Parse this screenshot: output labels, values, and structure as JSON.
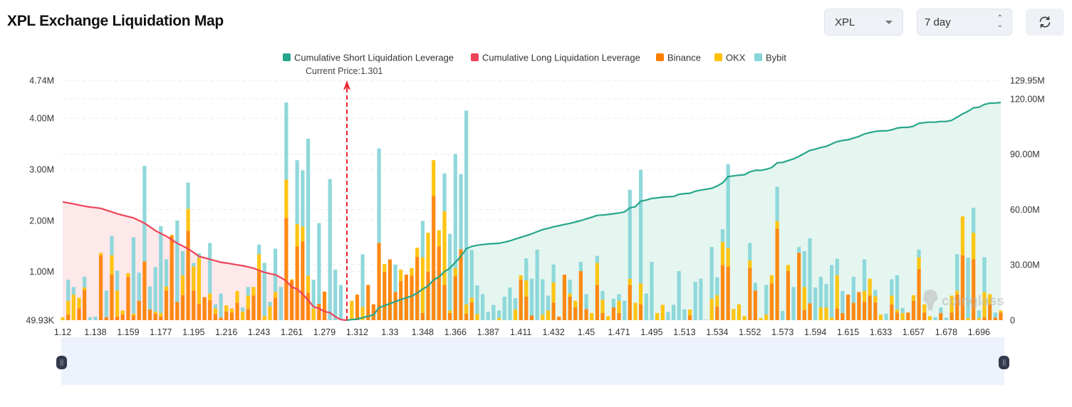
{
  "header": {
    "title": "XPL Exchange Liquidation Map",
    "symbol_select": "XPL",
    "range_select": "7 day",
    "refresh_icon": "refresh-icon"
  },
  "watermark": "coinglass",
  "chart_data": {
    "type": "bar",
    "stacked": true,
    "legend_placement": "top-center",
    "legend": [
      "Cumulative Short Liquidation Leverage",
      "Cumulative Long Liquidation Leverage",
      "Binance",
      "OKX",
      "Bybit"
    ],
    "current_price_label": "Current Price:1.301",
    "current_price": 1.301,
    "grid": true,
    "x_tick_labels": [
      "1.12",
      "1.138",
      "1.159",
      "1.177",
      "1.195",
      "1.216",
      "1.243",
      "1.261",
      "1.279",
      "1.312",
      "1.33",
      "1.348",
      "1.366",
      "1.387",
      "1.411",
      "1.432",
      "1.45",
      "1.471",
      "1.495",
      "1.513",
      "1.534",
      "1.552",
      "1.573",
      "1.594",
      "1.615",
      "1.633",
      "1.657",
      "1.678",
      "1.696"
    ],
    "y_left": {
      "tick_labels": [
        "49.93K",
        "1.00M",
        "2.00M",
        "3.00M",
        "4.00M",
        "4.74M"
      ],
      "ticks": [
        0.04993,
        1,
        2,
        3,
        4,
        4.74
      ],
      "range": [
        0.04993,
        4.74
      ],
      "unit": "M"
    },
    "y_right": {
      "tick_labels": [
        "0",
        "30.00M",
        "60.00M",
        "90.00M",
        "120.00M",
        "129.95M"
      ],
      "ticks": [
        0,
        30,
        60,
        90,
        120,
        129.95
      ],
      "range": [
        0,
        129.95
      ],
      "unit": "M"
    },
    "colors": {
      "Binance": "#ff7f00",
      "OKX": "#ffc000",
      "Bybit": "#86d5d8",
      "short_line": "#26a68a",
      "long_line": "#ef4358",
      "short_fill": "#e5f5f0",
      "long_fill": "#fde8ea",
      "current_price": "#e8212f"
    },
    "series": [
      {
        "name": "Binance",
        "axis": "left",
        "values": [
          0,
          0.11,
          0,
          0.23,
          0.59,
          0,
          0,
          1.27,
          0.06,
          0.89,
          0.07,
          0.11,
          0.85,
          0.09,
          0.38,
          1.15,
          0.21,
          0.13,
          0.07,
          0.58,
          1.65,
          0.36,
          0.49,
          1.75,
          0.58,
          0.32,
          0.45,
          0.39,
          0.12,
          0.05,
          0.17,
          0.15,
          0.34,
          0,
          0.22,
          0.48,
          0.96,
          0,
          0,
          0.44,
          0,
          2.0,
          0.78,
          1.44,
          1.54,
          0.54,
          0,
          0.32,
          0.56,
          0,
          0,
          0,
          0,
          0,
          0.5,
          0,
          0.69,
          0.31,
          1.51,
          0.94,
          1.19,
          0.55,
          0.77,
          0.89,
          0.87,
          1.24,
          0.14,
          0.95,
          2.43,
          1.44,
          0.69,
          0.14,
          0.86,
          1.39,
          0.13,
          0.35,
          0,
          0,
          0,
          0,
          0,
          0,
          0,
          0,
          0.79,
          0.46,
          0.09,
          0,
          0,
          0,
          0.35,
          0.07,
          0.89,
          0.46,
          0.25,
          0.96,
          0.22,
          0,
          0.69,
          0.14,
          0,
          0.25,
          0.14,
          0,
          0.69,
          0,
          0.31,
          0,
          0,
          0,
          0,
          0,
          0,
          0,
          0,
          0.09,
          0,
          0,
          0,
          0,
          0.27,
          1.08,
          1.05,
          0,
          0,
          0,
          1.02,
          0.58,
          0,
          0,
          0.72,
          1.79,
          0,
          0.96,
          0,
          1.32,
          0.2,
          0.33,
          0,
          0,
          0,
          0,
          0.23,
          0.14,
          0.5,
          0.34,
          0.55,
          0.36,
          0.48,
          0.35,
          0,
          0,
          0.31,
          0.15,
          0,
          0.15,
          0.38,
          1.0,
          0.15,
          0,
          0,
          0.14,
          0,
          0.15,
          0.5,
          1.27,
          0,
          1.19,
          0,
          0.06,
          0.31,
          0.05,
          0.15
        ]
      },
      {
        "name": "OKX",
        "axis": "left",
        "values": [
          0.06,
          0.27,
          0.5,
          0.21,
          0.05,
          0,
          0,
          0.05,
          0,
          0.38,
          0.51,
          0.08,
          0.07,
          0.04,
          0,
          0,
          0,
          0.04,
          0.07,
          0.08,
          0.02,
          0,
          0.39,
          0.43,
          0.47,
          0.9,
          0,
          0.13,
          0.11,
          0,
          0.12,
          0.08,
          0.23,
          0.17,
          0.26,
          0.17,
          0.33,
          0.08,
          0.27,
          0.11,
          0,
          0.75,
          0.02,
          0.44,
          0.29,
          0.33,
          0.23,
          0,
          0,
          0,
          0,
          0,
          0,
          0.38,
          0,
          0.26,
          0,
          0,
          0,
          0.16,
          0,
          0,
          0.22,
          0,
          0.15,
          0.18,
          1.09,
          0.76,
          0.7,
          0.32,
          1.44,
          0.05,
          0.16,
          0,
          0.18,
          0.09,
          0.12,
          0,
          0,
          0,
          0.04,
          0,
          0,
          0.21,
          0.09,
          0.32,
          0,
          0,
          0.11,
          0.19,
          0.39,
          0,
          0,
          0.06,
          0.13,
          0,
          0,
          0.14,
          0.43,
          0.26,
          0.08,
          0,
          0.24,
          0,
          0.12,
          0.34,
          0.41,
          0,
          0,
          0.14,
          0.3,
          0,
          0,
          0,
          0,
          0.12,
          0,
          0,
          0,
          0.42,
          0.22,
          0.45,
          0.36,
          0.22,
          0.31,
          0.08,
          0.15,
          0,
          0.04,
          0.11,
          0.16,
          0.15,
          0,
          0.12,
          0,
          0,
          0.45,
          0,
          0,
          0.25,
          0.25,
          0.05,
          0.65,
          0,
          0,
          0,
          0,
          0.21,
          0.33,
          0.12,
          0.11,
          0,
          0.17,
          0.06,
          0.14,
          0,
          0.11,
          0.23,
          0.16,
          0.08,
          0,
          0,
          0,
          0.33,
          0.08,
          0.76,
          0.04,
          0.52,
          0.04,
          0.49,
          0.2,
          0,
          0.04
        ]
      },
      {
        "name": "Bybit",
        "axis": "left",
        "values": [
          0,
          0.41,
          0.15,
          0,
          0.21,
          0.06,
          0.07,
          0,
          0.52,
          0.38,
          0.39,
          0,
          0,
          1.49,
          0.55,
          1.87,
          0.45,
          0.87,
          1.7,
          0.53,
          0,
          1.59,
          0.47,
          0.51,
          0.07,
          0.09,
          0,
          0.99,
          0.08,
          0.47,
          0,
          0,
          0,
          0.08,
          0.17,
          0,
          0.19,
          1.04,
          0.09,
          0.85,
          0.65,
          1.51,
          0,
          1.25,
          1.1,
          2.68,
          0.56,
          1.58,
          0,
          2.76,
          0.99,
          0.69,
          0,
          0,
          0,
          1.03,
          0,
          0,
          1.85,
          0,
          0,
          0.54,
          0,
          0,
          0,
          0,
          0.71,
          0,
          0,
          0,
          0.74,
          1.5,
          2.23,
          1.47,
          3.79,
          0.93,
          0.56,
          0.51,
          0.16,
          0.3,
          0.15,
          0.46,
          0.64,
          0.22,
          0,
          0.43,
          0.72,
          1.38,
          0.69,
          0.29,
          0.35,
          0,
          0,
          0.27,
          0,
          0.18,
          0.29,
          0,
          0.14,
          0.17,
          0,
          0.17,
          0.13,
          0.38,
          1.74,
          0,
          2.22,
          0.52,
          1.14,
          0,
          0,
          0.16,
          0.3,
          0.96,
          0.21,
          0,
          0.75,
          0.81,
          0.01,
          1.01,
          0.35,
          0.25,
          1.64,
          0,
          0,
          0,
          0.34,
          0.15,
          0,
          0.58,
          0,
          0.67,
          0.18,
          0,
          0.65,
          0.11,
          0.7,
          1.27,
          0.64,
          0.6,
          0.46,
          1.03,
          0.32,
          0.43,
          0,
          0.51,
          0,
          0.62,
          0,
          0.12,
          0,
          0.13,
          0.32,
          0.67,
          0.1,
          0,
          0,
          0.15,
          0,
          0,
          0.06,
          0.11,
          0.05,
          0,
          0.71,
          0,
          1.18,
          0.49,
          0.15,
          0.68,
          0,
          0.1,
          0
        ]
      },
      {
        "name": "Cumulative Long Liquidation Leverage",
        "axis": "right",
        "type": "area",
        "align": "start",
        "values": [
          64.1,
          63.6,
          63.0,
          62.4,
          61.8,
          61.3,
          61.0,
          60.6,
          59.6,
          58.7,
          57.7,
          56.9,
          56.2,
          55.4,
          54.0,
          52.6,
          50.6,
          48.5,
          47.0,
          45.5,
          43.6,
          41.7,
          40.2,
          38.7,
          36.7,
          34.6,
          33.8,
          33.0,
          32.2,
          31.4,
          31.0,
          30.5,
          30.0,
          29.5,
          28.9,
          28.2,
          27.0,
          25.9,
          25.2,
          24.6,
          23.1,
          21.2,
          18.0,
          16.9,
          14.1,
          10.9,
          7.3,
          6.4,
          4.7,
          4.1,
          1.9,
          0.3,
          0
        ]
      },
      {
        "name": "Cumulative Short Liquidation Leverage",
        "axis": "right",
        "type": "area",
        "align": "end",
        "values": [
          0,
          0.3,
          0.6,
          1.4,
          2.2,
          2.9,
          6.8,
          7.9,
          9.0,
          10.1,
          11.2,
          12.1,
          13.1,
          14.7,
          16.9,
          18.6,
          21.8,
          23.5,
          26.3,
          28.2,
          31.4,
          34.6,
          38.7,
          40.0,
          40.6,
          41.0,
          41.3,
          41.5,
          41.7,
          42.3,
          43.0,
          44.0,
          44.9,
          45.8,
          46.8,
          48.0,
          49.1,
          49.8,
          50.6,
          51.2,
          51.9,
          52.5,
          53.2,
          54.0,
          54.9,
          55.8,
          56.8,
          57.0,
          57.3,
          57.7,
          58.1,
          58.7,
          60.9,
          61.5,
          64.5,
          65.1,
          66.0,
          66.3,
          66.7,
          66.9,
          67.0,
          68.2,
          68.6,
          68.8,
          69.9,
          70.5,
          71.0,
          71.5,
          72.7,
          74.4,
          77.8,
          78.2,
          78.6,
          78.8,
          80.4,
          81.2,
          81.2,
          81.8,
          82.7,
          85.3,
          85.5,
          86.5,
          87.4,
          88.8,
          90.4,
          92.0,
          92.7,
          93.6,
          94.2,
          95.5,
          96.8,
          97.4,
          97.8,
          98.7,
          99.6,
          100.9,
          101.7,
          102.3,
          102.6,
          102.6,
          103.2,
          104.1,
          104.5,
          104.5,
          105.1,
          106.7,
          107.1,
          107.3,
          107.3,
          107.7,
          107.7,
          108.3,
          110.0,
          111.8,
          113.2,
          115.1,
          115.4,
          116.9,
          117.6,
          117.7,
          118.0
        ]
      }
    ]
  }
}
